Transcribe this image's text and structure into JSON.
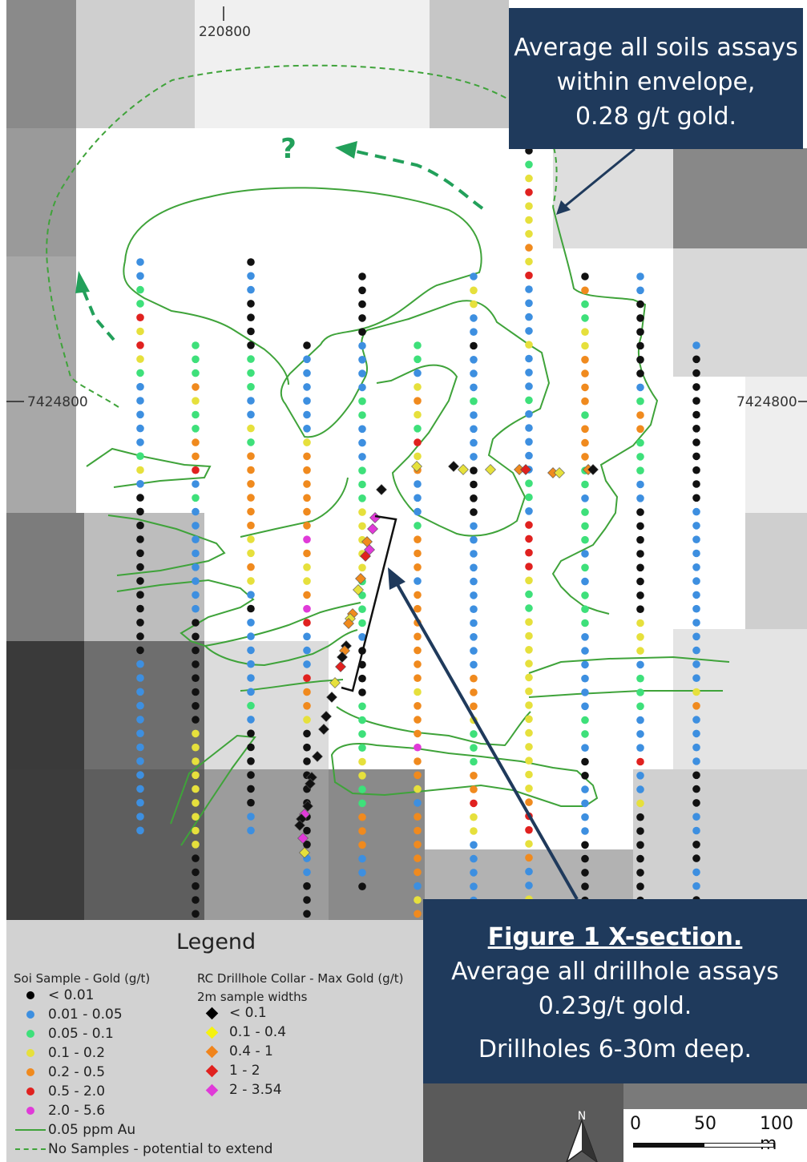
{
  "map": {
    "grid": {
      "easting_label": "220800",
      "northing_label_left": "7424800",
      "northing_label_right": "7424800"
    },
    "soil_lines": [
      {
        "samples": [
          "blue",
          "blue",
          "green",
          "green",
          "red",
          "yellow",
          "red",
          "yellow",
          "green",
          "blue",
          "blue",
          "blue",
          "blue",
          "blue",
          "green",
          "yellow",
          "blue",
          "black",
          "black",
          "black",
          "black",
          "black",
          "black",
          "black",
          "black",
          "black",
          "black",
          "black",
          "black",
          "blue",
          "blue",
          "blue",
          "blue",
          "blue",
          "blue",
          "blue",
          "blue",
          "blue",
          "blue",
          "blue",
          "blue",
          "blue"
        ]
      },
      {
        "samples": [
          "green",
          "green",
          "green",
          "orange",
          "yellow",
          "green",
          "green",
          "orange",
          "orange",
          "red",
          "blue",
          "green",
          "blue",
          "blue",
          "blue",
          "blue",
          "blue",
          "blue",
          "blue",
          "blue",
          "black",
          "black",
          "black",
          "black",
          "black",
          "black",
          "black",
          "black",
          "yellow",
          "yellow",
          "yellow",
          "yellow",
          "yellow",
          "yellow",
          "yellow",
          "yellow",
          "yellow",
          "black",
          "black",
          "black",
          "black",
          "black"
        ]
      },
      {
        "samples": [
          "black",
          "blue",
          "blue",
          "black",
          "black",
          "black",
          "black",
          "green",
          "green",
          "green",
          "blue",
          "blue",
          "yellow",
          "green",
          "orange",
          "orange",
          "orange",
          "orange",
          "orange",
          "orange",
          "yellow",
          "yellow",
          "orange",
          "yellow",
          "blue",
          "black",
          "blue",
          "blue",
          "blue",
          "blue",
          "blue",
          "blue",
          "green",
          "blue",
          "black",
          "black",
          "black",
          "black",
          "black",
          "black",
          "blue",
          "blue"
        ]
      },
      {
        "samples": [
          "black",
          "blue",
          "blue",
          "blue",
          "blue",
          "blue",
          "blue",
          "yellow",
          "orange",
          "orange",
          "orange",
          "orange",
          "orange",
          "orange",
          "magenta",
          "orange",
          "yellow",
          "yellow",
          "orange",
          "magenta",
          "red",
          "blue",
          "blue",
          "blue",
          "red",
          "orange",
          "orange",
          "yellow",
          "black",
          "black",
          "black",
          "black",
          "black",
          "black",
          "black",
          "black",
          "black",
          "blue",
          "blue",
          "black",
          "black",
          "black",
          "black"
        ]
      },
      {
        "samples": [
          "black",
          "black",
          "black",
          "black",
          "black",
          "blue",
          "blue",
          "blue",
          "blue",
          "green",
          "green",
          "blue",
          "blue",
          "blue",
          "green",
          "green",
          "green",
          "yellow",
          "yellow",
          "yellow",
          "yellow",
          "yellow",
          "green",
          "green",
          "green",
          "green",
          "blue",
          "black",
          "black",
          "black",
          "black",
          "green",
          "green",
          "green",
          "green",
          "yellow",
          "yellow",
          "green",
          "green",
          "orange",
          "orange",
          "orange",
          "blue",
          "blue",
          "black"
        ]
      },
      {
        "samples": [
          "green",
          "green",
          "blue",
          "yellow",
          "orange",
          "yellow",
          "green",
          "red",
          "yellow",
          "orange",
          "blue",
          "blue",
          "blue",
          "green",
          "orange",
          "orange",
          "orange",
          "blue",
          "orange",
          "orange",
          "orange",
          "orange",
          "orange",
          "orange",
          "orange",
          "yellow",
          "orange",
          "orange",
          "orange",
          "magenta",
          "orange",
          "orange",
          "yellow",
          "blue",
          "orange",
          "orange",
          "orange",
          "orange",
          "orange",
          "blue",
          "yellow",
          "orange",
          "orange",
          "blue",
          "blue",
          "green",
          "blue",
          "blue",
          "black",
          "black",
          "black"
        ]
      },
      {
        "samples": [
          "blue",
          "yellow",
          "yellow",
          "blue",
          "blue",
          "black",
          "blue",
          "blue",
          "blue",
          "green",
          "blue",
          "blue",
          "blue",
          "blue",
          "black",
          "black",
          "black",
          "black",
          "blue",
          "blue",
          "blue",
          "blue",
          "blue",
          "blue",
          "blue",
          "blue",
          "blue",
          "blue",
          "blue",
          "orange",
          "orange",
          "orange",
          "yellow",
          "green",
          "green",
          "green",
          "orange",
          "orange",
          "red",
          "yellow",
          "yellow",
          "blue",
          "blue",
          "blue",
          "blue",
          "blue",
          "blue",
          "blue",
          "blue",
          "blue",
          "blue",
          "red",
          "green",
          "blue",
          "blue",
          "black"
        ]
      },
      {
        "samples": [
          "black",
          "green",
          "yellow",
          "red",
          "yellow",
          "yellow",
          "yellow",
          "orange",
          "yellow",
          "red",
          "blue",
          "blue",
          "blue",
          "blue",
          "yellow",
          "blue",
          "blue",
          "blue",
          "green",
          "blue",
          "blue",
          "blue",
          "blue",
          "blue",
          "green",
          "green",
          "blue",
          "red",
          "red",
          "red",
          "red",
          "yellow",
          "green",
          "green",
          "yellow",
          "yellow",
          "yellow",
          "yellow",
          "yellow",
          "yellow",
          "yellow",
          "yellow",
          "yellow",
          "yellow",
          "yellow",
          "yellow",
          "yellow",
          "orange",
          "red",
          "red",
          "yellow",
          "orange",
          "blue",
          "blue",
          "yellow",
          "green",
          "blue",
          "blue",
          "black",
          "black",
          "black",
          "black",
          "black",
          "black",
          "black"
        ]
      },
      {
        "samples": [
          "black",
          "orange",
          "green",
          "green",
          "yellow",
          "yellow",
          "orange",
          "orange",
          "orange",
          "orange",
          "green",
          "orange",
          "orange",
          "orange",
          "green",
          "green",
          "blue",
          "green",
          "green",
          "green",
          "blue",
          "green",
          "blue",
          "green",
          "green",
          "green",
          "blue",
          "blue",
          "blue",
          "blue",
          "blue",
          "blue",
          "green",
          "green",
          "blue",
          "black",
          "black",
          "blue",
          "blue",
          "blue",
          "blue",
          "black",
          "black",
          "black",
          "black",
          "black",
          "black",
          "black"
        ]
      },
      {
        "samples": [
          "blue",
          "blue",
          "black",
          "black",
          "black",
          "black",
          "black",
          "black",
          "blue",
          "green",
          "orange",
          "orange",
          "green",
          "green",
          "green",
          "blue",
          "blue",
          "black",
          "black",
          "black",
          "black",
          "black",
          "black",
          "black",
          "black",
          "yellow",
          "yellow",
          "yellow",
          "blue",
          "green",
          "green",
          "green",
          "blue",
          "blue",
          "blue",
          "red",
          "blue",
          "blue",
          "yellow",
          "black",
          "black",
          "black",
          "black",
          "black",
          "black",
          "black",
          "black",
          "black",
          "black",
          "black",
          "black",
          "black",
          "black",
          "black",
          "black"
        ]
      },
      {
        "samples": [
          "blue",
          "black",
          "black",
          "black",
          "black",
          "black",
          "black",
          "black",
          "black",
          "black",
          "black",
          "black",
          "blue",
          "blue",
          "blue",
          "blue",
          "blue",
          "blue",
          "blue",
          "blue",
          "blue",
          "blue",
          "blue",
          "blue",
          "blue",
          "yellow",
          "orange",
          "blue",
          "blue",
          "blue",
          "blue",
          "black",
          "black",
          "black",
          "blue",
          "blue",
          "black",
          "black",
          "blue",
          "blue",
          "black"
        ]
      }
    ],
    "drillholes": [
      {
        "collars": [
          "black",
          "magenta",
          "magenta",
          "orange",
          "magenta",
          "red",
          "orange",
          "yellow",
          "orange",
          "yellow",
          "orange",
          "black",
          "orange",
          "red",
          "black",
          "yellow",
          "black",
          "black",
          "black",
          "black",
          "black",
          "black",
          "black",
          "magenta",
          "black",
          "yellow",
          "magenta",
          "black"
        ]
      },
      {
        "collars": [
          "yellow",
          "black",
          "yellow",
          "yellow",
          "orange",
          "red",
          "orange",
          "yellow",
          "orange",
          "black"
        ]
      }
    ],
    "question_mark": "?",
    "north_label": "N"
  },
  "callouts": {
    "soils": [
      "Average all soils assays",
      "within envelope,",
      "0.28 g/t gold."
    ],
    "figure_title": "Figure 1 X-section.",
    "drill": [
      "Average all drillhole assays",
      "0.23g/t gold."
    ],
    "depth": "Drillholes 6-30m deep."
  },
  "legend": {
    "title": "Legend",
    "soil_header": "Soi Sample - Gold (g/t)",
    "soil_items": [
      {
        "label": "< 0.01",
        "color": "#000000"
      },
      {
        "label": "0.01 - 0.05",
        "color": "#3d8fe0"
      },
      {
        "label": "0.05 - 0.1",
        "color": "#3ee07a"
      },
      {
        "label": "0.1 - 0.2",
        "color": "#e6e03c"
      },
      {
        "label": "0.2 - 0.5",
        "color": "#f08a1e"
      },
      {
        "label": "0.5 - 2.0",
        "color": "#e0211f"
      },
      {
        "label": "2.0 - 5.6",
        "color": "#e03ad8"
      }
    ],
    "line_items": [
      {
        "label": "0.05 ppm Au",
        "style": "solid"
      },
      {
        "label": "No Samples - potential to extend",
        "style": "dashed"
      }
    ],
    "rc_header": "RC Drillhole Collar - Max Gold (g/t)",
    "rc_subheader": "2m sample widths",
    "rc_items": [
      {
        "label": "< 0.1",
        "color": "#000000"
      },
      {
        "label": "0.1 - 0.4",
        "color": "#f5f20f"
      },
      {
        "label": "0.4 - 1",
        "color": "#f0841c"
      },
      {
        "label": "1 - 2",
        "color": "#e0211f"
      },
      {
        "label": "2 - 3.54",
        "color": "#e03ad8"
      }
    ],
    "line_color": "#3fa33a"
  },
  "scale": {
    "labels": [
      "0",
      "50",
      "100 m"
    ]
  },
  "colors": {
    "black": "#111111",
    "blue": "#3d8fe0",
    "green": "#3ee07a",
    "yellow": "#e6e03c",
    "orange": "#f08a1e",
    "red": "#e0211f",
    "magenta": "#e03ad8",
    "contour": "#3fa33a",
    "callout_bg": "#1f3a5c",
    "arrow": "#1f3a5c"
  }
}
